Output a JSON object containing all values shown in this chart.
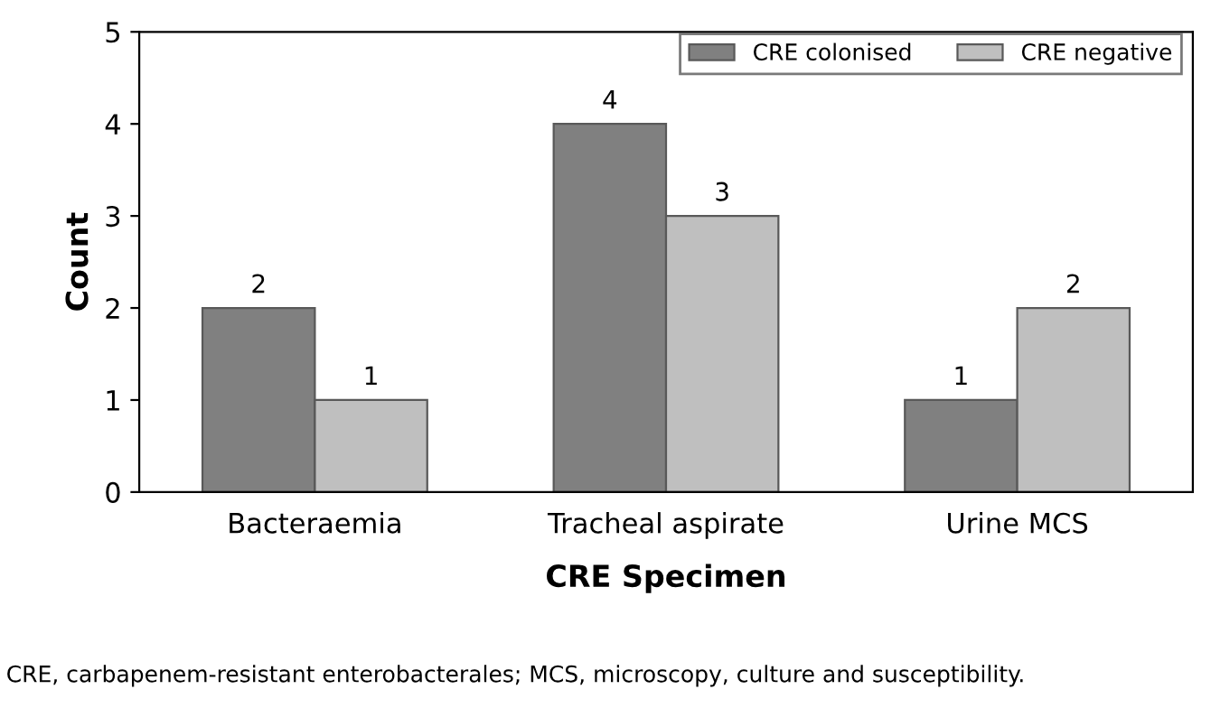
{
  "chart_data": {
    "type": "bar",
    "xlabel": "CRE Specimen",
    "ylabel": "Count",
    "categories": [
      "Bacteraemia",
      "Tracheal aspirate",
      "Urine MCS"
    ],
    "series": [
      {
        "name": "CRE colonised",
        "color": "#808080",
        "values": [
          2,
          4,
          1
        ]
      },
      {
        "name": "CRE negative",
        "color": "#bfbfbf",
        "values": [
          1,
          3,
          2
        ]
      }
    ],
    "ylim": [
      0,
      5
    ],
    "yticks": [
      0,
      1,
      2,
      3,
      4,
      5
    ],
    "grid": false,
    "legend": "top right",
    "data_labels": true,
    "annotations": [
      "CRE, carbapenem-resistant enterobacterales; MCS, microscopy, culture and susceptibility."
    ]
  }
}
